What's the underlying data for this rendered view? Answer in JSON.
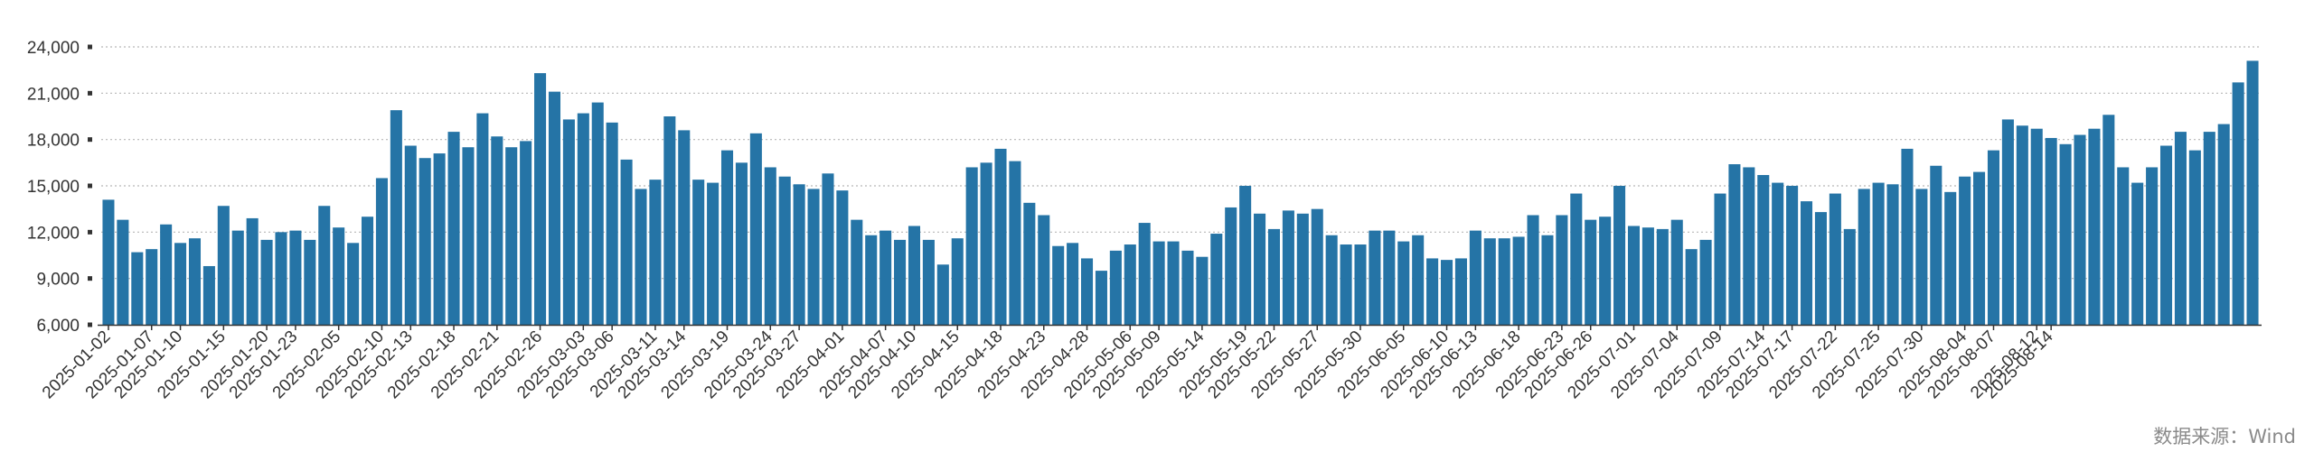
{
  "chart_data": {
    "type": "bar",
    "title": "",
    "xlabel": "",
    "ylabel": "",
    "ylim": [
      6000,
      24000
    ],
    "yticks": [
      "6,000",
      "9,000",
      "12,000",
      "15,000",
      "18,000",
      "21,000",
      "24,000"
    ],
    "ytick_values": [
      6000,
      9000,
      12000,
      15000,
      18000,
      21000,
      24000
    ],
    "grid": "horizontal-dotted",
    "bar_color": "#2574a6",
    "xtick_labels": [
      "2025-01-02",
      "2025-01-07",
      "2025-01-10",
      "2025-01-15",
      "2025-01-20",
      "2025-01-23",
      "2025-02-05",
      "2025-02-10",
      "2025-02-13",
      "2025-02-18",
      "2025-02-21",
      "2025-02-26",
      "2025-03-03",
      "2025-03-06",
      "2025-03-11",
      "2025-03-14",
      "2025-03-19",
      "2025-03-24",
      "2025-03-27",
      "2025-04-01",
      "2025-04-07",
      "2025-04-10",
      "2025-04-15",
      "2025-04-18",
      "2025-04-23",
      "2025-04-28",
      "2025-05-06",
      "2025-05-09",
      "2025-05-14",
      "2025-05-19",
      "2025-05-22",
      "2025-05-27",
      "2025-05-30",
      "2025-06-05",
      "2025-06-10",
      "2025-06-13",
      "2025-06-18",
      "2025-06-23",
      "2025-06-26",
      "2025-07-01",
      "2025-07-04",
      "2025-07-09",
      "2025-07-14",
      "2025-07-17",
      "2025-07-22",
      "2025-07-25",
      "2025-07-30",
      "2025-08-04",
      "2025-08-07",
      "2025-08-12",
      "2025-08-14"
    ],
    "xtick_indices": [
      0,
      3,
      5,
      8,
      11,
      13,
      16,
      19,
      21,
      24,
      27,
      30,
      33,
      35,
      38,
      40,
      43,
      46,
      48,
      51,
      54,
      56,
      59,
      62,
      65,
      68,
      71,
      73,
      76,
      79,
      81,
      84,
      87,
      90,
      93,
      95,
      98,
      101,
      103,
      106,
      109,
      112,
      115,
      117,
      120,
      123,
      126,
      129,
      131,
      134,
      135
    ],
    "values": [
      14100,
      12800,
      10700,
      10900,
      12500,
      11300,
      11600,
      9800,
      13700,
      12100,
      12900,
      11500,
      12000,
      12100,
      11500,
      13700,
      12300,
      11300,
      13000,
      15500,
      19900,
      17600,
      16800,
      17100,
      18500,
      17500,
      19700,
      18200,
      17500,
      17900,
      22300,
      21100,
      19300,
      19700,
      20400,
      19100,
      16700,
      14800,
      15400,
      19500,
      18600,
      15400,
      15200,
      17300,
      16500,
      18400,
      16200,
      15600,
      15100,
      14800,
      15800,
      14700,
      12800,
      11800,
      12100,
      11500,
      12400,
      11500,
      9900,
      11600,
      16200,
      16500,
      17400,
      16600,
      13900,
      13100,
      11100,
      11300,
      10300,
      9500,
      10800,
      11200,
      12600,
      11400,
      11400,
      10800,
      10400,
      11900,
      13600,
      15000,
      13200,
      12200,
      13400,
      13200,
      13500,
      11800,
      11200,
      11200,
      12100,
      12100,
      11400,
      11800,
      10300,
      10200,
      10300,
      12100,
      11600,
      11600,
      11700,
      13100,
      11800,
      13100,
      14500,
      12800,
      13000,
      15000,
      12400,
      12300,
      12200,
      12800,
      10900,
      11500,
      14500,
      16400,
      16200,
      15700,
      15200,
      15000,
      14000,
      13300,
      14500,
      12200,
      14800,
      15200,
      15100,
      17400,
      14800,
      16300,
      14600,
      15600,
      15900,
      17300,
      19300,
      18900,
      18700,
      18100,
      17700,
      18300,
      18700,
      19600,
      16200,
      15200,
      16200,
      17600,
      18500,
      17300,
      18500,
      19000,
      21700,
      23100
    ]
  },
  "source_note": "数据来源：Wind"
}
